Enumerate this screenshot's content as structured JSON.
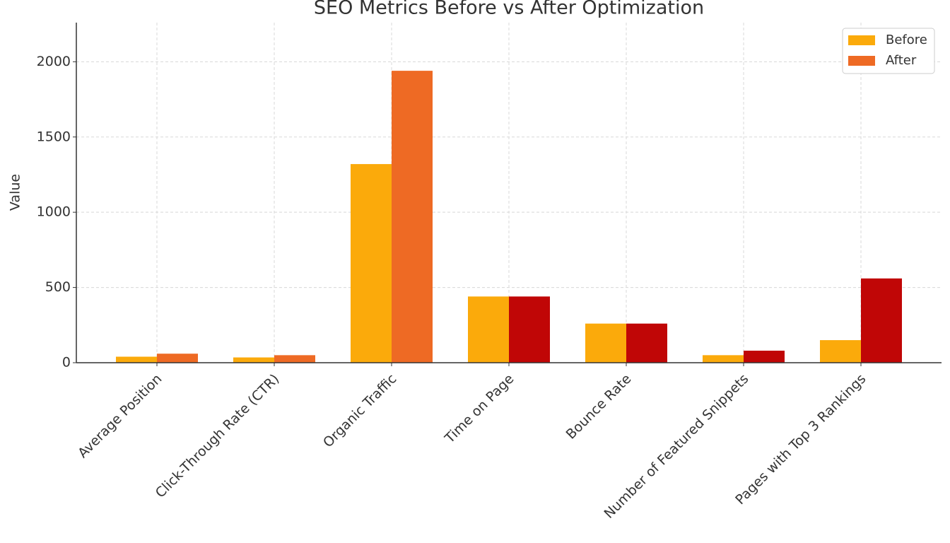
{
  "chart_data": {
    "type": "bar",
    "title": "SEO Metrics Before vs After Optimization",
    "y_label": "Value",
    "categories": [
      "Average Position",
      "Click-Through Rate (CTR)",
      "Organic Traffic",
      "Time on Page",
      "Bounce Rate",
      "Number of Featured Snippets",
      "Pages with Top 3 Rankings"
    ],
    "series": [
      {
        "name": "Before",
        "color": "#fbaa0b",
        "values": [
          40,
          35,
          1320,
          440,
          260,
          50,
          150
        ]
      },
      {
        "name": "After",
        "color": "#ee6a24",
        "point_colors": [
          "#ee6a24",
          "#ee6a24",
          "#ee6a24",
          "#c00606",
          "#c00606",
          "#c00606",
          "#c00606"
        ],
        "values": [
          60,
          50,
          1940,
          440,
          260,
          80,
          560
        ]
      }
    ],
    "ylim": [
      0,
      2260
    ],
    "yticks": [
      0,
      500,
      1000,
      1500,
      2000
    ],
    "grid": true,
    "legend": "upper right"
  }
}
